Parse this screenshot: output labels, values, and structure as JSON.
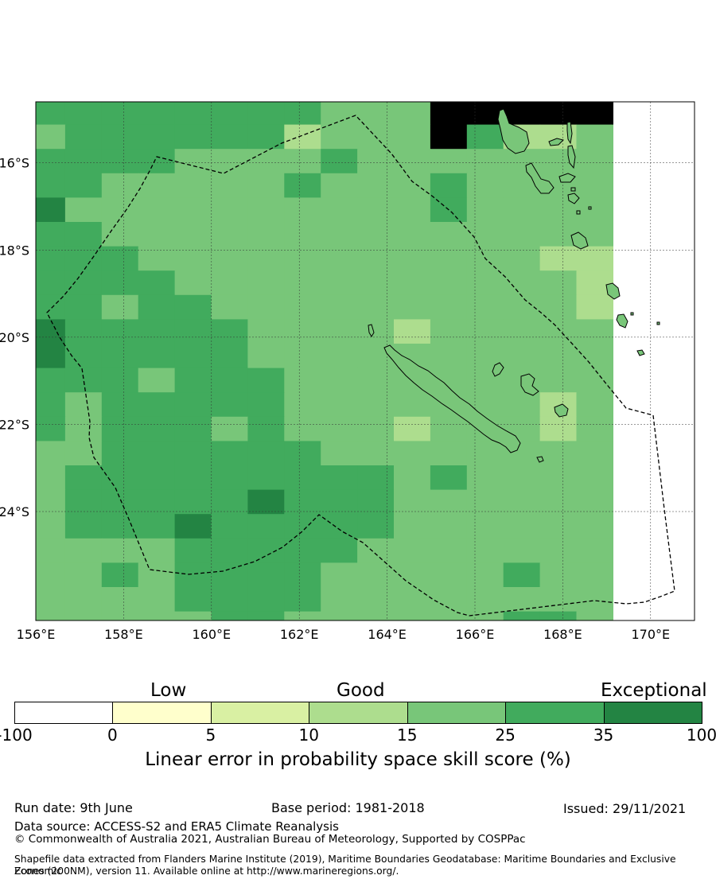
{
  "map": {
    "lon_labels": [
      "156°E",
      "158°E",
      "160°E",
      "162°E",
      "164°E",
      "166°E",
      "168°E",
      "170°E"
    ],
    "lat_labels": [
      "16°S",
      "18°S",
      "20°S",
      "22°S",
      "24°S"
    ],
    "lon_values": [
      156,
      158,
      160,
      162,
      164,
      166,
      168,
      170
    ],
    "lat_values": [
      -16,
      -18,
      -20,
      -22,
      -24
    ],
    "extent": {
      "lon_min": 156,
      "lon_max": 171,
      "lat_min": -26.5,
      "lat_max": -14.6
    },
    "skill_grid_levels": [
      "3333333322255555",
      "2333333122253112",
      "3333222232222222",
      "3322222322232222",
      "4222222222232222",
      "3322222222222222",
      "3332222222222211",
      "3333222222222221",
      "3323322222222221",
      "4333332222122222",
      "4333332222222222",
      "3332333222222222",
      "3233333222222212",
      "3233323222122212",
      "2233333322222222",
      "2333333333232222",
      "2333334333222222",
      "2333433333222222",
      "2222333332222222",
      "2232333322222322",
      "2222333322222222",
      "2222233222222332",
      "2223322223222222",
      "3223222222332222"
    ],
    "colors": {
      "land_fill": "#79c679",
      "border": "#000000"
    }
  },
  "colorbar": {
    "categories": [
      "Low",
      "Good",
      "Exceptional"
    ],
    "tick_labels": [
      "-100",
      "0",
      "5",
      "10",
      "15",
      "25",
      "35",
      "100"
    ],
    "bin_colors": [
      "#ffffff",
      "#ffffcc",
      "#d9f0a3",
      "#addd8e",
      "#78c679",
      "#41ab5d",
      "#238443"
    ],
    "title": "Linear error in probability space skill score (%)"
  },
  "footer": {
    "run_date": "Run date: 9th June",
    "base_period": "Base period: 1981-2018",
    "issued": "Issued: 29/11/2021",
    "data_source": "Data source: ACCESS-S2 and ERA5 Climate Reanalysis",
    "copyright": "© Commonwealth of Australia 2021, Australian Bureau of Meteorology, Supported by COSPPac",
    "shapefile_line1": "Shapefile data extracted from Flanders Marine Institute (2019), Maritime Boundaries Geodatabase: Maritime Boundaries and Exclusive Economic",
    "shapefile_line2": "Zones (200NM), version 11. Available online at http://www.marineregions.org/."
  }
}
